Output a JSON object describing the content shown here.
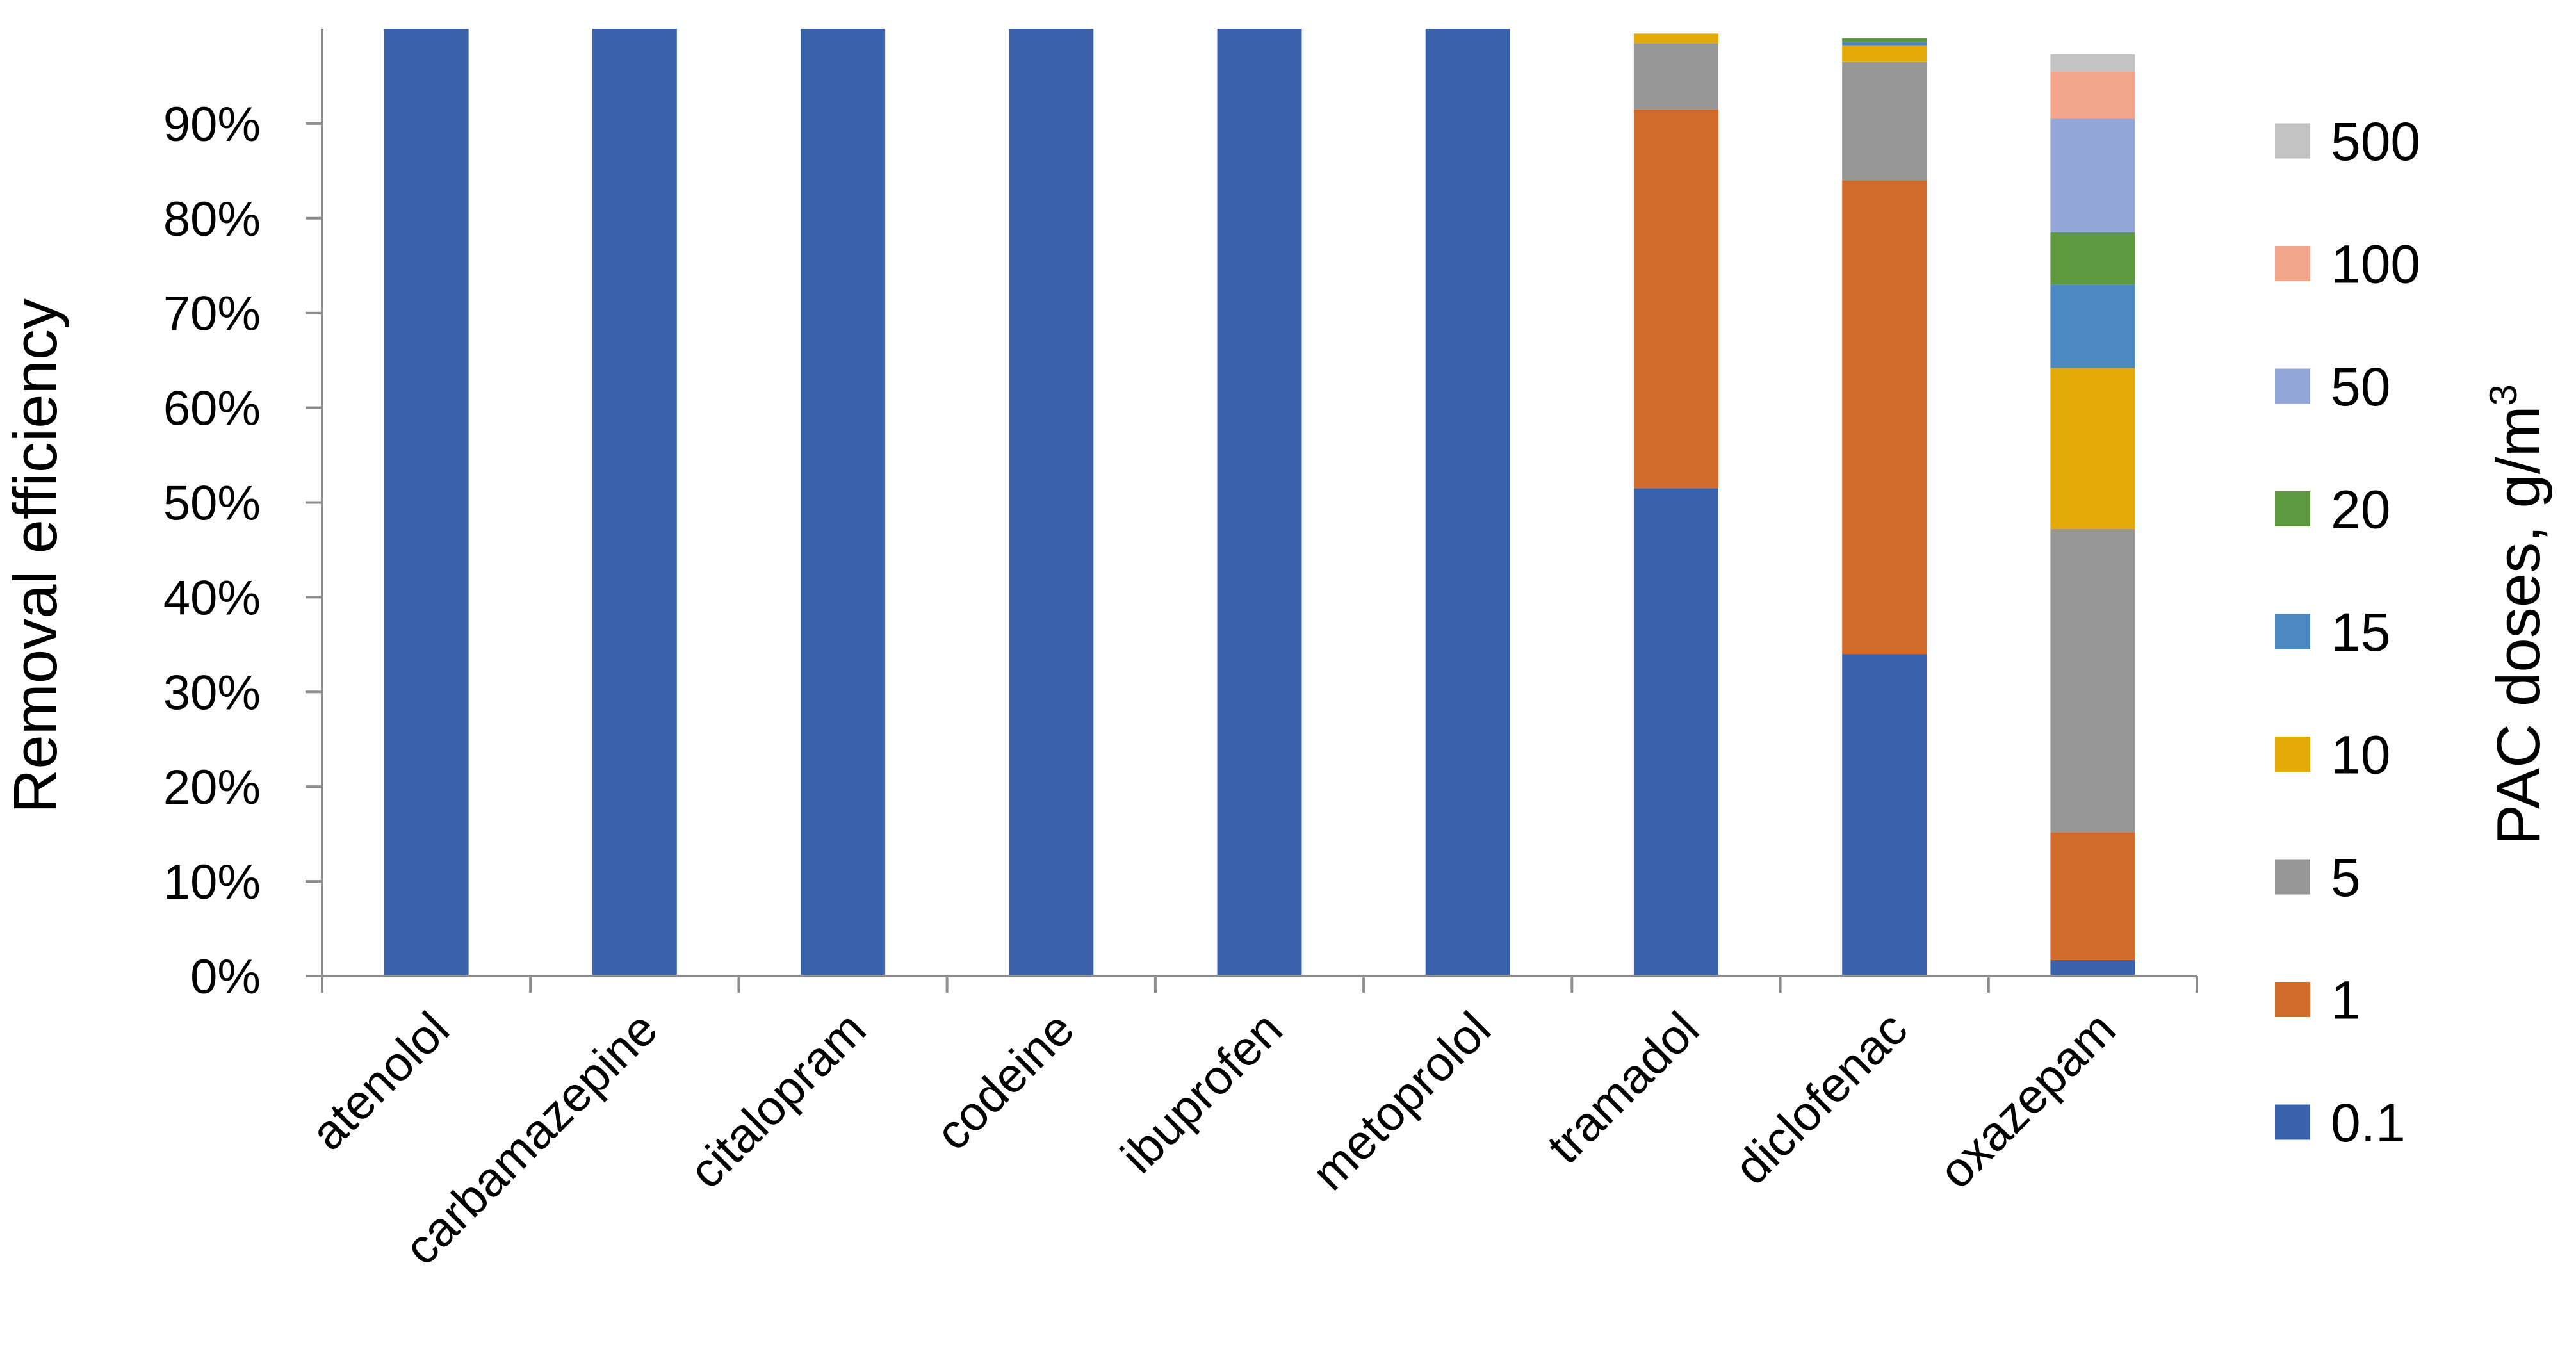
{
  "chart_data": {
    "type": "bar",
    "stacked": true,
    "title": "",
    "ylabel": "Removal efficiency",
    "legend_title": "PAC doses, g/m",
    "legend_title_superscript": "3",
    "legend_position": "right",
    "grid": false,
    "ylim": [
      0,
      1
    ],
    "yticks": [
      "0%",
      "10%",
      "20%",
      "30%",
      "40%",
      "50%",
      "60%",
      "70%",
      "80%",
      "90%"
    ],
    "categories": [
      "atenolol",
      "carbamazepine",
      "citalopram",
      "codeine",
      "ibuprofen",
      "metoprolol",
      "tramadol",
      "diclofenac",
      "oxazepam"
    ],
    "series": [
      {
        "name": "0.1",
        "color": "#3A62AB",
        "values": [
          1.0,
          1.0,
          1.0,
          1.0,
          1.0,
          1.0,
          0.515,
          0.34,
          0.017
        ]
      },
      {
        "name": "1",
        "color": "#D06B2C",
        "values": [
          0,
          0,
          0,
          0,
          0,
          0,
          0.4,
          0.5,
          0.135
        ]
      },
      {
        "name": "5",
        "color": "#969696",
        "values": [
          0,
          0,
          0,
          0,
          0,
          0,
          0.07,
          0.125,
          0.32
        ]
      },
      {
        "name": "10",
        "color": "#E3A907",
        "values": [
          0,
          0,
          0,
          0,
          0,
          0,
          0.01,
          0.017,
          0.17
        ]
      },
      {
        "name": "15",
        "color": "#4C88C2",
        "values": [
          0,
          0,
          0,
          0,
          0,
          0,
          0,
          0.004,
          0.088
        ]
      },
      {
        "name": "20",
        "color": "#5E9940",
        "values": [
          0,
          0,
          0,
          0,
          0,
          0,
          0,
          0.004,
          0.055
        ]
      },
      {
        "name": "50",
        "color": "#92A7D8",
        "values": [
          0,
          0,
          0,
          0,
          0,
          0,
          0,
          0,
          0.12
        ]
      },
      {
        "name": "100",
        "color": "#F2A58A",
        "values": [
          0,
          0,
          0,
          0,
          0,
          0,
          0,
          0,
          0.05
        ]
      },
      {
        "name": "500",
        "color": "#C3C3C3",
        "values": [
          0,
          0,
          0,
          0,
          0,
          0,
          0,
          0,
          0.018
        ]
      }
    ]
  }
}
